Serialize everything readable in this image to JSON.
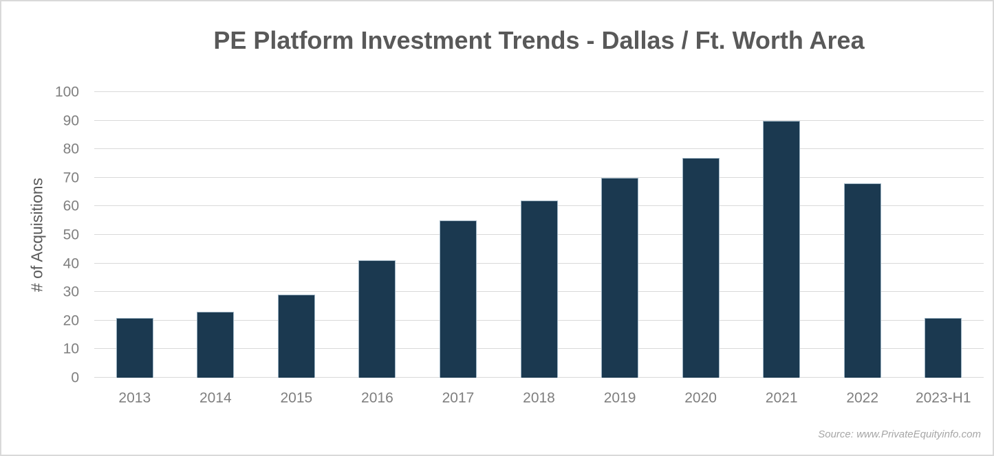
{
  "window": {
    "background": "#ffffff",
    "frame_border_color": "#d9d9d9"
  },
  "chart_data": {
    "type": "bar",
    "title": "PE Platform Investment Trends - Dallas / Ft. Worth Area",
    "xlabel": "",
    "ylabel": "# of Acquisitions",
    "categories": [
      "2013",
      "2014",
      "2015",
      "2016",
      "2017",
      "2018",
      "2019",
      "2020",
      "2021",
      "2022",
      "2023-H1"
    ],
    "values": [
      21,
      23,
      29,
      41,
      55,
      62,
      70,
      77,
      90,
      68,
      21
    ],
    "ylim": [
      0,
      100
    ],
    "ytick_step": 10,
    "ytick_labels": [
      "0",
      "10",
      "20",
      "30",
      "40",
      "50",
      "60",
      "70",
      "80",
      "90",
      "100"
    ],
    "grid": true,
    "legend": false,
    "colors": {
      "bar": "#1b3950",
      "bar_border": "#9db4c4",
      "gridline": "#d9d9d9",
      "title_text": "#595959",
      "axis_title_text": "#595959",
      "tick_text": "#7f7f7f"
    }
  },
  "footer": {
    "source": "Source: www.PrivateEquityinfo.com",
    "color": "#a6a6a6"
  }
}
